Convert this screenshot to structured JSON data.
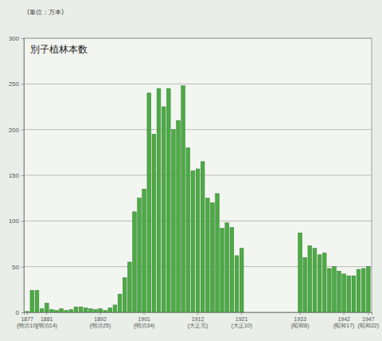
{
  "chart_data": {
    "type": "bar",
    "title": "別子植林本数",
    "ylabel": "(単位：万本)",
    "categories": [
      "1877\n(明治10)",
      null,
      null,
      null,
      "1881\n(明治14)",
      null,
      null,
      null,
      null,
      null,
      null,
      null,
      null,
      null,
      null,
      "1892\n(明治25)",
      null,
      null,
      null,
      null,
      null,
      null,
      null,
      null,
      "1901\n(明治34)",
      null,
      null,
      null,
      null,
      null,
      null,
      null,
      null,
      null,
      null,
      "1912\n(大正元)",
      null,
      null,
      null,
      null,
      null,
      null,
      null,
      null,
      "1921\n(大正10)",
      null,
      null,
      null,
      null,
      null,
      null,
      null,
      null,
      null,
      null,
      null,
      "1933\n(昭和8)",
      null,
      null,
      null,
      null,
      null,
      null,
      null,
      null,
      "1942\n(昭和17)",
      null,
      null,
      null,
      null,
      "1947\n(昭和22)"
    ],
    "values": [
      1,
      24,
      24,
      4,
      10,
      3,
      2,
      4,
      2,
      3,
      6,
      6,
      5,
      4,
      3,
      4,
      2,
      5,
      8,
      20,
      38,
      55,
      110,
      125,
      135,
      240,
      195,
      245,
      225,
      245,
      200,
      210,
      248,
      180,
      155,
      157,
      165,
      125,
      120,
      130,
      92,
      98,
      93,
      62,
      70,
      null,
      null,
      null,
      null,
      null,
      null,
      null,
      null,
      null,
      null,
      null,
      87,
      60,
      73,
      70,
      63,
      65,
      48,
      50,
      45,
      42,
      40,
      40,
      47,
      48,
      50
    ],
    "color": "#4caa45",
    "ylim": [
      0,
      300
    ],
    "yticks": [
      0,
      50,
      100,
      150,
      200,
      250,
      300
    ],
    "grid": true
  }
}
